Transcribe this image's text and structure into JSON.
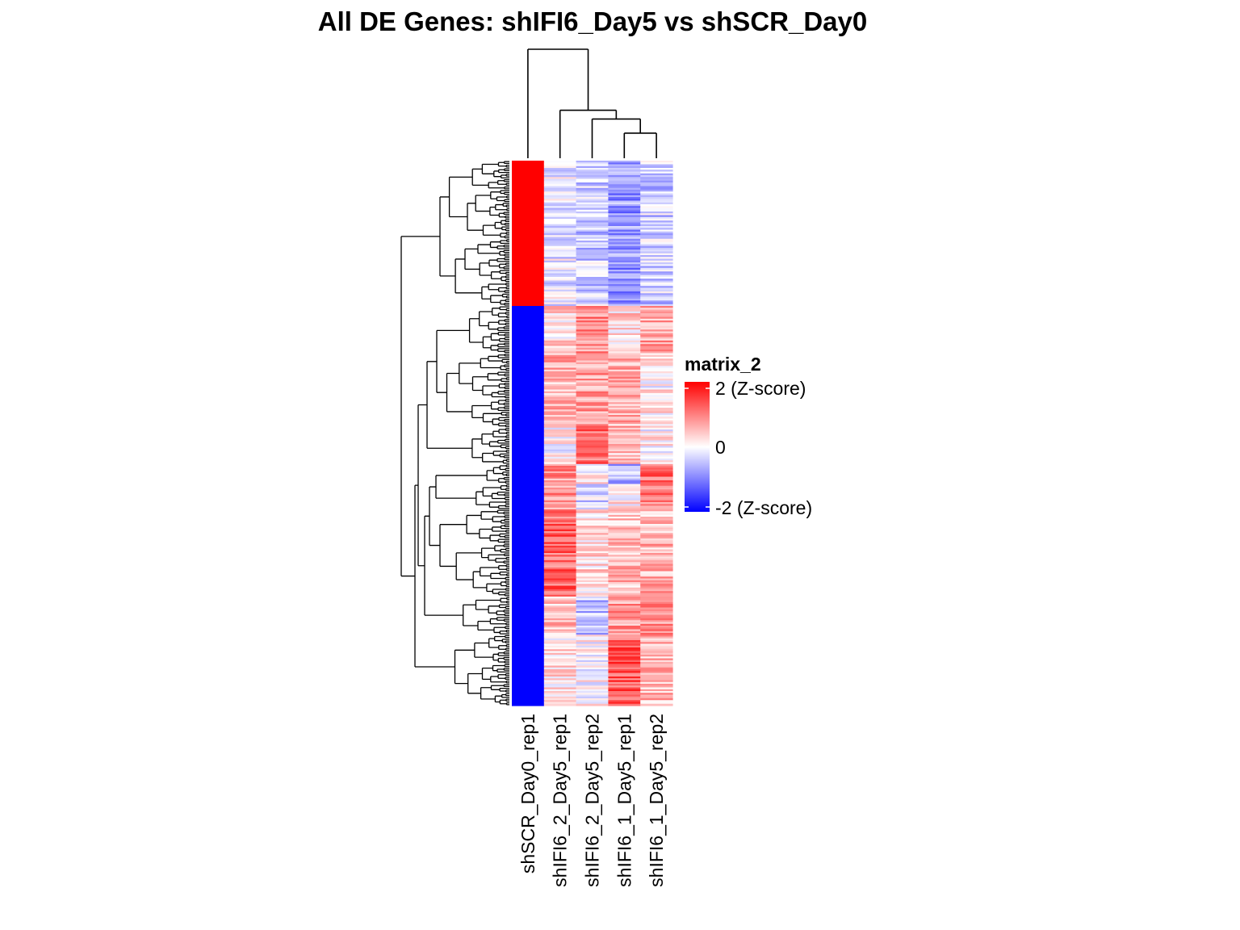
{
  "chart_data": {
    "type": "heatmap",
    "title": "All DE Genes: shIFI6_Day5  vs  shSCR_Day0",
    "columns": [
      "shSCR_Day0_rep1",
      "shIFI6_2_Day5_rep1",
      "shIFI6_2_Day5_rep2",
      "shIFI6_1_Day5_rep1",
      "shIFI6_1_Day5_rep2"
    ],
    "row_dendrogram": true,
    "column_dendrogram": {
      "merge_order": [
        [
          "shIFI6_1_Day5_rep1",
          "shIFI6_1_Day5_rep2"
        ],
        [
          "shIFI6_2_Day5_rep2",
          "cluster_1"
        ],
        [
          "shIFI6_2_Day5_rep1",
          "cluster_2"
        ],
        [
          "shSCR_Day0_rep1",
          "cluster_3"
        ]
      ],
      "relative_heights": [
        0.23,
        0.36,
        0.44,
        1.0
      ]
    },
    "row_blocks": [
      {
        "fraction": 0.265,
        "values": [
          2.0,
          -0.2,
          -0.4,
          -0.8,
          -0.4
        ]
      },
      {
        "fraction": 0.085,
        "values": [
          -2.0,
          0.3,
          0.9,
          0.3,
          0.7
        ]
      },
      {
        "fraction": 0.135,
        "values": [
          -2.0,
          0.6,
          0.8,
          0.6,
          0.1
        ]
      },
      {
        "fraction": 0.065,
        "values": [
          -2.0,
          0.0,
          1.1,
          0.4,
          0.1
        ]
      },
      {
        "fraction": 0.035,
        "values": [
          -2.0,
          0.9,
          0.2,
          -0.6,
          1.2
        ]
      },
      {
        "fraction": 0.045,
        "values": [
          -2.0,
          0.9,
          -0.3,
          0.2,
          1.0
        ]
      },
      {
        "fraction": 0.16,
        "values": [
          -2.0,
          1.2,
          0.3,
          0.5,
          0.6
        ]
      },
      {
        "fraction": 0.07,
        "values": [
          -2.0,
          0.5,
          -0.5,
          0.8,
          0.9
        ]
      },
      {
        "fraction": 0.14,
        "values": [
          -2.0,
          0.2,
          0.0,
          1.3,
          0.6
        ]
      }
    ],
    "color_scale": {
      "name": "matrix_2",
      "min": -2,
      "mid": 0,
      "max": 2,
      "colors": [
        "#0000ff",
        "#ffffff",
        "#ff0000"
      ],
      "labels": [
        "2 (Z-score)",
        "0",
        "-2 (Z-score)"
      ]
    }
  }
}
